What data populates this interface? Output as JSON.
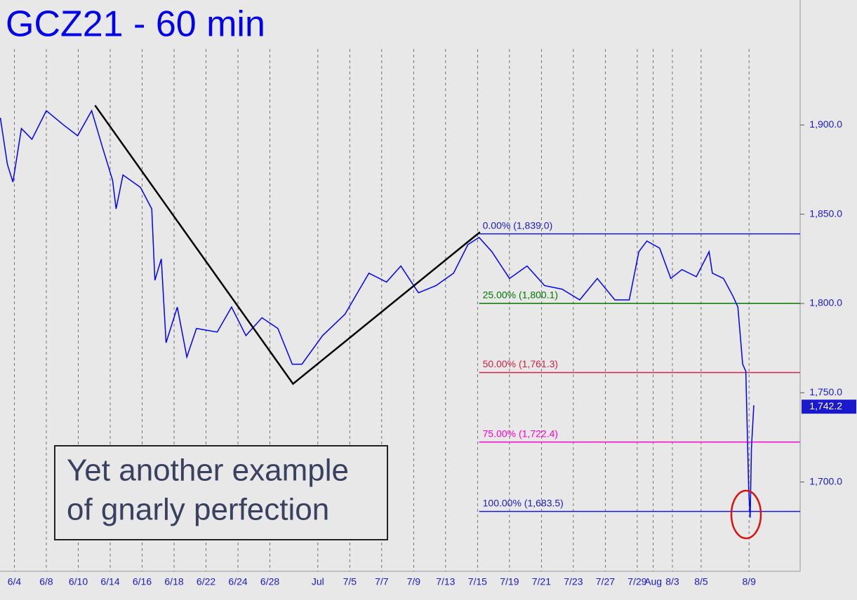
{
  "chart_data": {
    "type": "line",
    "title": "GCZ21 - 60 min",
    "xlim": [
      -0.9,
      49.2
    ],
    "ylim": [
      1650,
      1970
    ],
    "yticks": [
      {
        "value": 1700,
        "label": "1,700.0"
      },
      {
        "value": 1750,
        "label": "1,750.0"
      },
      {
        "value": 1800,
        "label": "1,800.0"
      },
      {
        "value": 1850,
        "label": "1,850.0"
      },
      {
        "value": 1900,
        "label": "1,900.0"
      }
    ],
    "xticks": [
      {
        "value": 0,
        "label": "6/4"
      },
      {
        "value": 2,
        "label": "6/8"
      },
      {
        "value": 4,
        "label": "6/10"
      },
      {
        "value": 6,
        "label": "6/14"
      },
      {
        "value": 8,
        "label": "6/16"
      },
      {
        "value": 10,
        "label": "6/18"
      },
      {
        "value": 12,
        "label": "6/22"
      },
      {
        "value": 14,
        "label": "6/24"
      },
      {
        "value": 16,
        "label": "6/28"
      },
      {
        "value": 19,
        "label": "Jul"
      },
      {
        "value": 21,
        "label": "7/5"
      },
      {
        "value": 23,
        "label": "7/7"
      },
      {
        "value": 25,
        "label": "7/9"
      },
      {
        "value": 27,
        "label": "7/13"
      },
      {
        "value": 29,
        "label": "7/15"
      },
      {
        "value": 31,
        "label": "7/19"
      },
      {
        "value": 33,
        "label": "7/21"
      },
      {
        "value": 35,
        "label": "7/23"
      },
      {
        "value": 37,
        "label": "7/27"
      },
      {
        "value": 39,
        "label": "7/29"
      },
      {
        "value": 40,
        "label": "Aug"
      },
      {
        "value": 41.2,
        "label": "8/3"
      },
      {
        "value": 43,
        "label": "8/5"
      },
      {
        "value": 46,
        "label": "8/9"
      }
    ],
    "grid": true,
    "series": [
      {
        "color": "#0000ff",
        "x": [
          -0.88,
          -0.44,
          -0.09,
          0.44,
          1.1,
          2.0,
          3.08,
          3.96,
          4.84,
          5.5,
          6.15,
          6.37,
          6.8,
          7.9,
          8.6,
          8.8,
          9.2,
          9.5,
          10.2,
          10.8,
          11.4,
          12.7,
          13.6,
          14.5,
          15.5,
          16.5,
          17.4,
          18.0,
          19.3,
          20.7,
          22.2,
          23.3,
          24.2,
          25.3,
          26.4,
          27.5,
          28.4,
          29.1,
          29.9,
          31.0,
          32.1,
          33.2,
          34.3,
          35.4,
          36.5,
          37.6,
          38.5,
          39.1,
          39.6,
          40.4,
          41.1,
          41.8,
          42.7,
          43.5,
          43.7,
          44.4,
          45.0,
          45.3,
          45.6,
          45.8,
          45.98,
          46.07,
          46.15,
          46.3
        ],
        "values": [
          1904,
          1878,
          1868,
          1898,
          1892,
          1908,
          1900,
          1894,
          1908,
          1888,
          1869,
          1853,
          1872,
          1865,
          1853,
          1813,
          1825,
          1778,
          1798,
          1770,
          1786,
          1784,
          1798,
          1782,
          1792,
          1786,
          1766,
          1766,
          1782,
          1794,
          1817,
          1812,
          1821,
          1806,
          1810,
          1817,
          1833,
          1837,
          1829,
          1814,
          1821,
          1810,
          1808,
          1802,
          1814,
          1802,
          1802,
          1829,
          1835,
          1831,
          1814,
          1819,
          1815,
          1829,
          1817,
          1814,
          1804,
          1798,
          1766,
          1762,
          1696,
          1680,
          1719,
          1743
        ]
      }
    ],
    "zigzag": {
      "color": "#000000",
      "x": [
        5.05,
        17.45,
        29.15
      ],
      "values": [
        1911,
        1755,
        1840
      ]
    },
    "levels_start": 29.1,
    "levels": [
      {
        "label": "0.00% (1,839.0)",
        "value": 1839,
        "color": "#1a1acc"
      },
      {
        "label": "25.00% (1,800.1)",
        "value": 1800.1,
        "color": "#007700"
      },
      {
        "label": "50.00% (1,761.3)",
        "value": 1761.3,
        "color": "#cc2244"
      },
      {
        "label": "75.00% (1,722.4)",
        "value": 1722.4,
        "color": "#ff00cc"
      },
      {
        "label": "100.00% (1,683.5)",
        "value": 1683.5,
        "color": "#1a1acc"
      }
    ],
    "last_price": {
      "value": 1742.2,
      "label": "1,742.2"
    },
    "annotation": [
      "Yet another example",
      "of gnarly perfection"
    ]
  }
}
